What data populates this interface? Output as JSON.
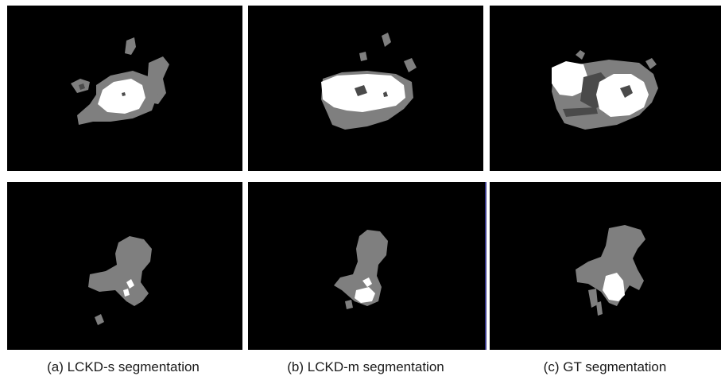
{
  "figure": {
    "captions": [
      "(a) LCKD-s segmentation",
      "(b) LCKD-m segmentation",
      "(c) GT segmentation"
    ],
    "colors": {
      "background": "#000000",
      "region_gray": "#7f7f7f",
      "region_dark": "#4a4a4a",
      "region_white": "#ffffff"
    }
  }
}
